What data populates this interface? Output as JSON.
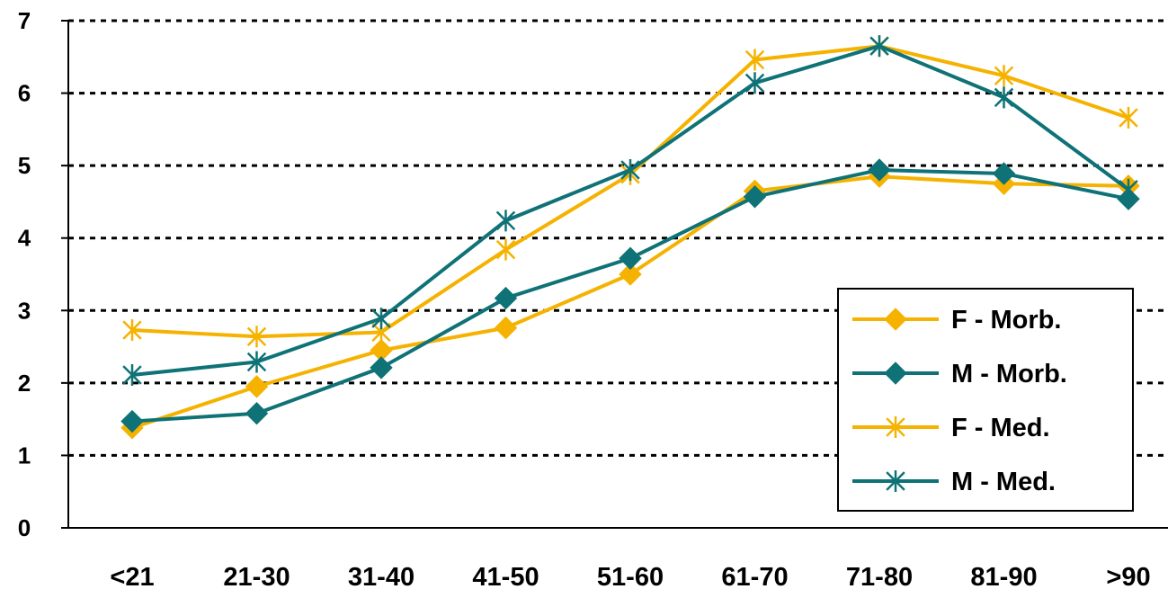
{
  "chart_data": {
    "type": "line",
    "categories": [
      "<21",
      "21-30",
      "31-40",
      "41-50",
      "51-60",
      "61-70",
      "71-80",
      "81-90",
      ">90"
    ],
    "ylim": [
      0,
      7
    ],
    "yticks": [
      "0",
      "1",
      "2",
      "3",
      "4",
      "5",
      "6",
      "7"
    ],
    "grid": "horizontal dotted",
    "legend_position": "right",
    "series": [
      {
        "name": "F - Morb.",
        "marker": "diamond",
        "color": "#F5B200",
        "values": [
          1.38,
          1.95,
          2.45,
          2.76,
          3.5,
          4.65,
          4.85,
          4.75,
          4.72
        ]
      },
      {
        "name": "M - Morb.",
        "marker": "diamond",
        "color": "#0E7277",
        "values": [
          1.47,
          1.58,
          2.21,
          3.17,
          3.72,
          4.57,
          4.94,
          4.89,
          4.54
        ]
      },
      {
        "name": "F - Med.",
        "marker": "asterisk",
        "color": "#F5B200",
        "values": [
          2.73,
          2.64,
          2.7,
          3.84,
          4.88,
          6.46,
          6.65,
          6.24,
          5.66
        ]
      },
      {
        "name": "M - Med.",
        "marker": "asterisk",
        "color": "#0E7277",
        "values": [
          2.11,
          2.29,
          2.89,
          4.24,
          4.94,
          6.14,
          6.65,
          5.94,
          4.67
        ]
      }
    ]
  }
}
